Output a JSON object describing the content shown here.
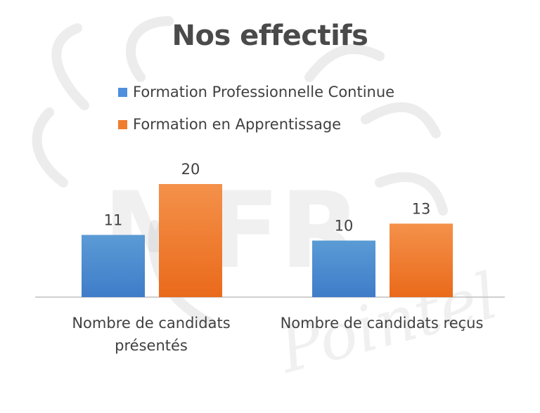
{
  "chart_data": {
    "type": "bar",
    "title": "Nos effectifs",
    "categories": [
      "Nombre de candidats présentés",
      "Nombre de candidats reçus"
    ],
    "category_lines": [
      [
        "Nombre de candidats",
        "présentés"
      ],
      [
        "Nombre de candidats reçus"
      ]
    ],
    "series": [
      {
        "name": "Formation Professionnelle Continue",
        "values": [
          11,
          10
        ],
        "color": "#4f8fdc"
      },
      {
        "name": "Formation en Apprentissage",
        "values": [
          20,
          13
        ],
        "color": "#f07c2e"
      }
    ],
    "ylim": [
      0,
      22
    ],
    "grid": false,
    "legend": "top-center",
    "data_labels": true
  },
  "watermark": {
    "text": "MFR Pointel",
    "color": "#d9d9d9"
  }
}
